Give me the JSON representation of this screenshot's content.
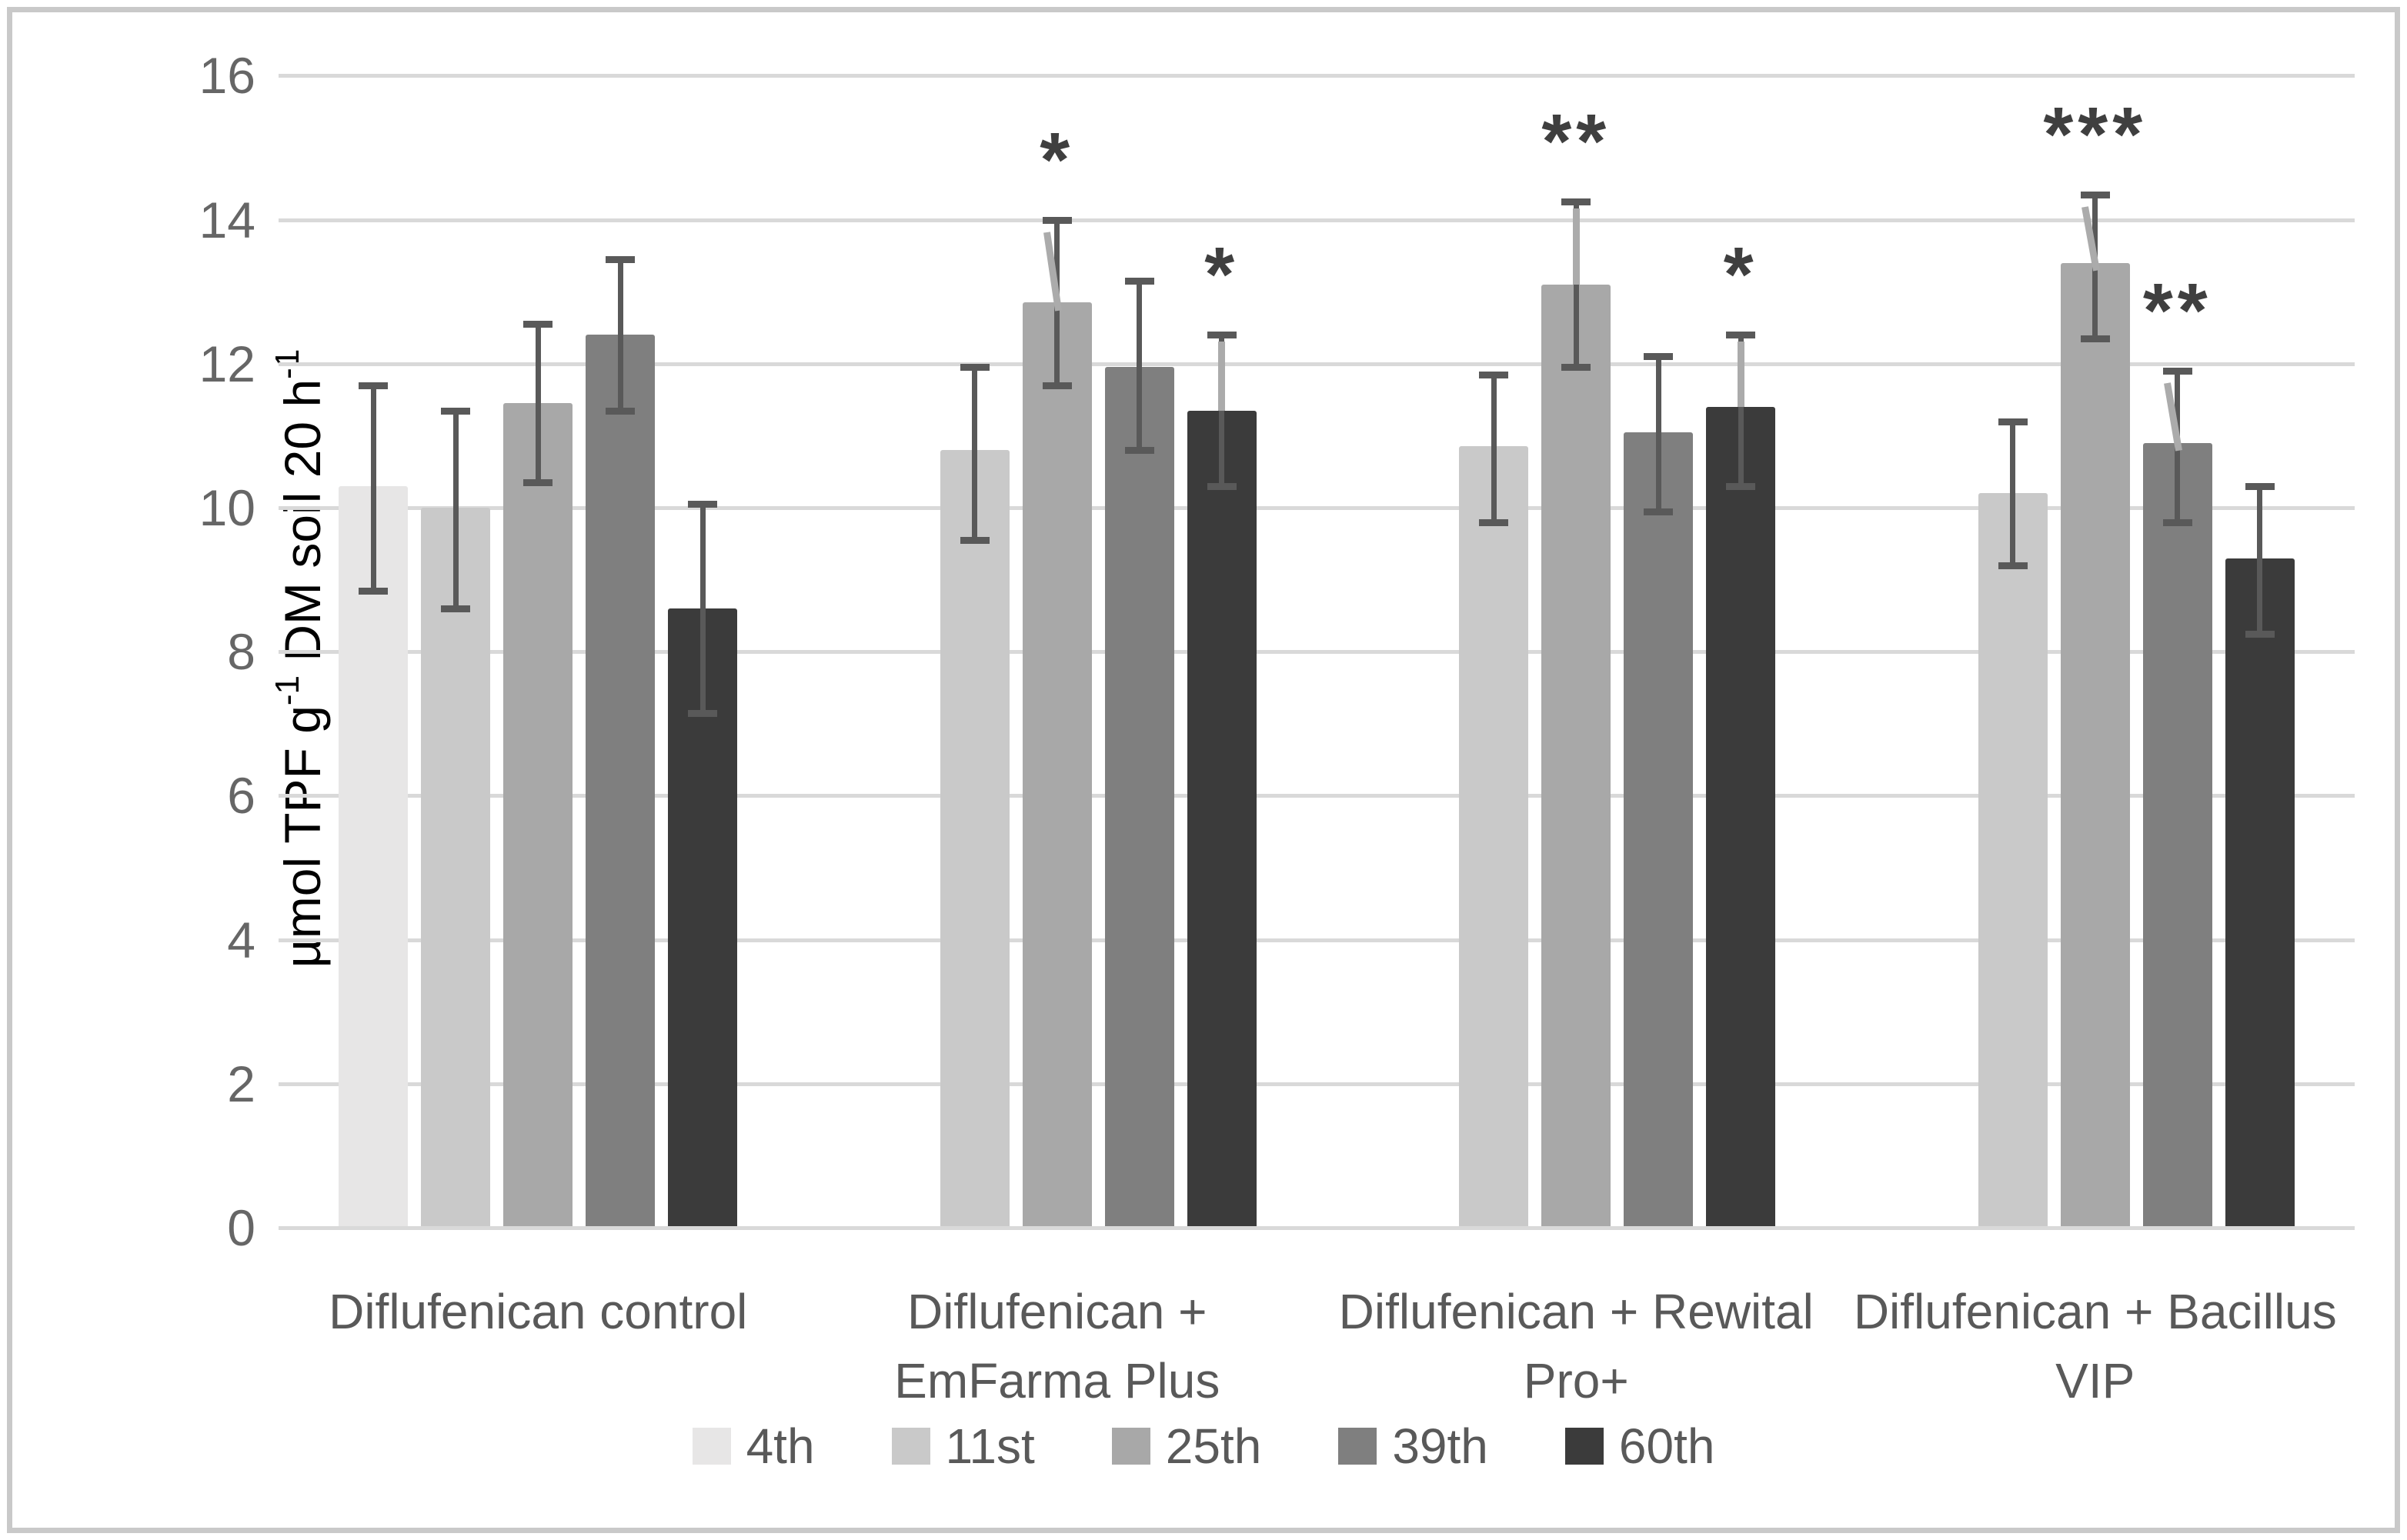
{
  "chart_data": {
    "type": "bar",
    "title": "",
    "y_axis": {
      "label_segments": [
        {
          "text": "µmol TPF g"
        },
        {
          "text": "-1",
          "sup": true
        },
        {
          "text": " DM soil 20 h"
        },
        {
          "text": "-1",
          "sup": true
        }
      ],
      "ticks": [
        "0",
        "2",
        "4",
        "6",
        "8",
        "10",
        "12",
        "14",
        "16"
      ],
      "tick_values": [
        0,
        2,
        4,
        6,
        8,
        10,
        12,
        14,
        16
      ],
      "ylim": [
        0,
        16
      ],
      "grid": true
    },
    "series": [
      {
        "name": "4th",
        "color": "#E7E6E6"
      },
      {
        "name": "11st",
        "color": "#C9C9C9"
      },
      {
        "name": "25th",
        "color": "#A8A8A8"
      },
      {
        "name": "39th",
        "color": "#7F7F7F"
      },
      {
        "name": "60th",
        "color": "#3B3B3B"
      }
    ],
    "colors": {
      "error_bar": "#595959",
      "leader": "#ABABAB",
      "gridline": "#D9D9D9",
      "stars": "#3F3F3F",
      "tick_text": "#666666",
      "label_text": "#595959"
    },
    "groups": [
      {
        "label_lines": [
          "Diflufenican control"
        ],
        "values": [
          10.3,
          10.0,
          11.45,
          12.4,
          8.6
        ],
        "err_lo": [
          8.85,
          8.6,
          10.35,
          11.35,
          7.15
        ],
        "err_hi": [
          11.7,
          11.35,
          12.55,
          13.45,
          10.05
        ],
        "stars": [
          null,
          null,
          null,
          null,
          null
        ],
        "leaders": [
          null,
          null,
          null,
          null,
          null
        ]
      },
      {
        "label_lines": [
          "Diflufenican +",
          "EmFarma Plus"
        ],
        "values": [
          null,
          10.8,
          12.85,
          11.95,
          11.35
        ],
        "err_lo": [
          null,
          9.55,
          11.7,
          10.8,
          10.3
        ],
        "err_hi": [
          null,
          11.95,
          14.0,
          13.15,
          12.4
        ],
        "stars": [
          null,
          null,
          "*",
          null,
          "*"
        ],
        "leaders": [
          null,
          null,
          "diagonal",
          null,
          "vertical"
        ]
      },
      {
        "label_lines": [
          "Diflufenican + Rewital",
          "Pro+"
        ],
        "values": [
          null,
          10.85,
          13.1,
          11.05,
          11.4
        ],
        "err_lo": [
          null,
          9.8,
          11.95,
          9.95,
          10.3
        ],
        "err_hi": [
          null,
          11.85,
          14.25,
          12.1,
          12.4
        ],
        "stars": [
          null,
          null,
          "**",
          null,
          "*"
        ],
        "leaders": [
          null,
          null,
          "vertical",
          null,
          "vertical"
        ]
      },
      {
        "label_lines": [
          "Diflufenican + Bacillus",
          "VIP"
        ],
        "values": [
          null,
          10.2,
          13.4,
          10.9,
          9.3
        ],
        "err_lo": [
          null,
          9.2,
          12.35,
          9.8,
          8.25
        ],
        "err_hi": [
          null,
          11.2,
          14.35,
          11.9,
          10.3
        ],
        "stars": [
          null,
          null,
          "***",
          "**",
          null
        ],
        "leaders": [
          null,
          null,
          "diagonal",
          "diagonal",
          null
        ]
      }
    ],
    "legend": {
      "position": "bottom"
    }
  }
}
